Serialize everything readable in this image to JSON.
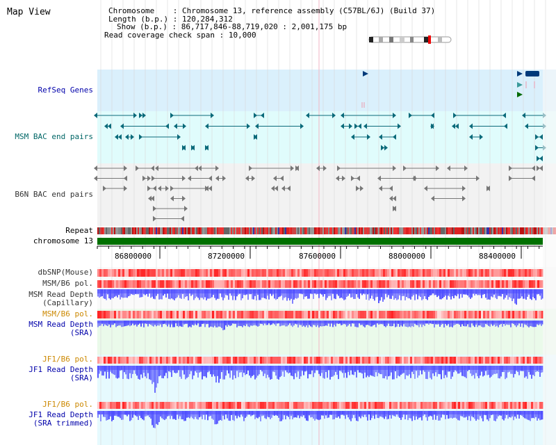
{
  "header": {
    "title": "Map View",
    "chromosome_label": "Chromosome",
    "chromosome_value": "Chromosome 13, reference assembly (C57BL/6J) (Build 37)",
    "length_label": "Length (b.p.)",
    "length_value": "120,284,312",
    "show_label": "Show (b.p.)",
    "show_value": "86,717,846-88,719,020 : 2,001,175 bp",
    "coverage_label": "Read coverage check span",
    "coverage_value": "10,000"
  },
  "tracks": {
    "refseq": "RefSeq Genes",
    "msm_bac": "MSM BAC end pairs",
    "b6n_bac": "B6N BAC end pairs",
    "repeat": "Repeat",
    "chromosome": "chromosome 13",
    "dbsnp": "dbSNP(Mouse)",
    "msm_pol": "MSM/B6 pol.",
    "msm_depth_cap_1": "MSM Read Depth",
    "msm_depth_cap_2": "(Capillary)",
    "msm_pol2": "MSM/B6 pol.",
    "msm_depth_sra_1": "MSM Read Depth",
    "msm_depth_sra_2": "(SRA)",
    "jf1_pol": "JF1/B6 pol.",
    "jf1_depth_sra_1": "JF1 Read Depth",
    "jf1_depth_sra_2": "(SRA)",
    "jf1_pol2": "JF1/B6 pol.",
    "jf1_depth_trim_1": "JF1 Read Depth",
    "jf1_depth_trim_2": "(SRA trimmed)"
  },
  "axis": {
    "ticks": [
      "86800000",
      "87200000",
      "87600000",
      "88000000",
      "88400000"
    ]
  },
  "colors": {
    "refseq_bg": "#daf0fc",
    "msm_bg": "#e0fcfc",
    "b6n_bg": "#f2f2f2",
    "chrom_bar": "#007000",
    "depth": "#4a4aff",
    "snp": "#ee2222"
  }
}
